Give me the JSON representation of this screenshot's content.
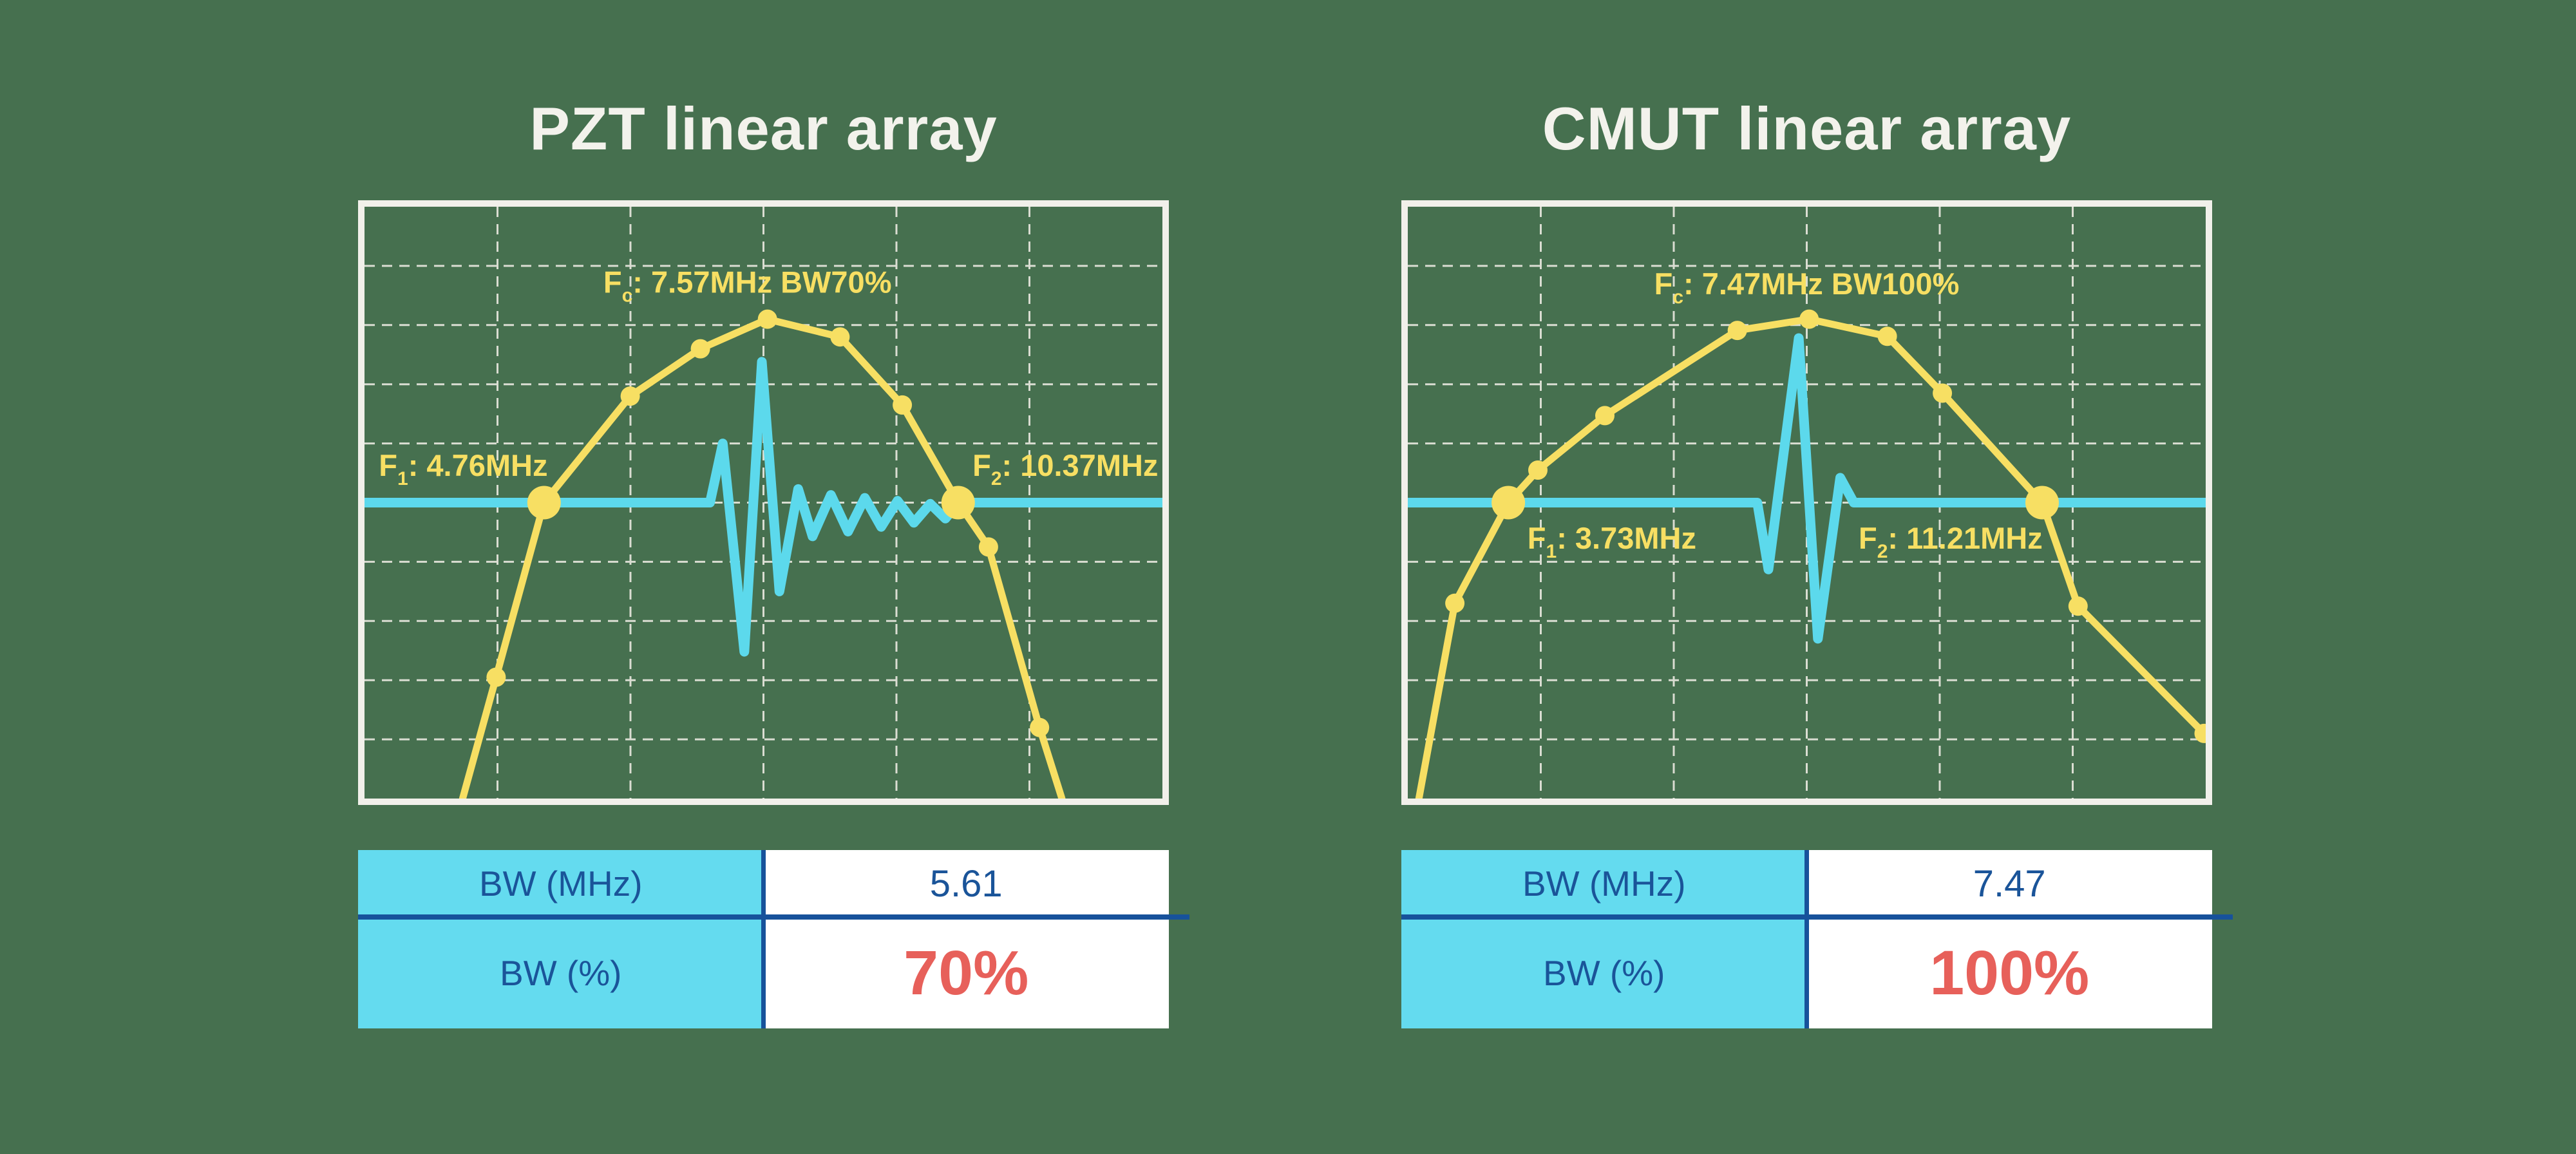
{
  "colors": {
    "background": "#46704F",
    "yellow": "#F7DF63",
    "cyan": "#5CD9EC",
    "table_header_bg": "#64DBEF",
    "table_text_blue": "#1A5499",
    "value_red": "#E7605A",
    "divider_blue": "#17529B",
    "chart_border": "#F1F0EA",
    "grid": "#F4F1E9",
    "title_text": "#F3F2EC"
  },
  "panels": [
    {
      "title": "PZT linear array",
      "table": {
        "rows": [
          {
            "label": "BW (MHz)",
            "value": "5.61"
          },
          {
            "label": "BW (%)",
            "value": "70%"
          }
        ]
      }
    },
    {
      "title": "CMUT linear array",
      "table": {
        "rows": [
          {
            "label": "BW (MHz)",
            "value": "7.47"
          },
          {
            "label": "BW (%)",
            "value": "100%"
          }
        ]
      }
    }
  ],
  "chart_data": [
    {
      "type": "line",
      "title": "PZT linear array",
      "xlabel": "frequency (MHz, unlabeled axis)",
      "ylabel": "relative amplitude (unlabeled axis)",
      "x_range_mhz_est": [
        2.3,
        13.1
      ],
      "grid": {
        "cols": 6,
        "rows": 10,
        "style": "dashed"
      },
      "legend": "none",
      "f1_mhz": 4.76,
      "fc_mhz": 7.57,
      "f2_mhz": 10.37,
      "bw_mhz": 5.61,
      "bw_pct": 70,
      "annotations": [
        {
          "prefix": "F",
          "sub": "c",
          "rest": ": 7.57MHz BW70%",
          "x": 0.48,
          "y": 0.145,
          "anchor": "middle"
        },
        {
          "prefix": "F",
          "sub": "1",
          "rest": ": 4.76MHz",
          "x": 0.018,
          "y": 0.455,
          "anchor": "start"
        },
        {
          "prefix": "F",
          "sub": "2",
          "rest": ": 10.37MHz",
          "x": 0.762,
          "y": 0.455,
          "anchor": "start"
        }
      ],
      "spectrum": {
        "points_norm": [
          [
            0.123,
            1.0
          ],
          [
            0.165,
            0.795
          ],
          [
            0.225,
            0.5
          ],
          [
            0.333,
            0.32
          ],
          [
            0.421,
            0.24
          ],
          [
            0.505,
            0.19
          ],
          [
            0.596,
            0.22
          ],
          [
            0.674,
            0.335
          ],
          [
            0.744,
            0.5
          ],
          [
            0.782,
            0.575
          ],
          [
            0.846,
            0.88
          ],
          [
            0.874,
            1.0
          ]
        ],
        "dots": [
          1,
          2,
          3,
          4,
          5,
          6,
          7,
          8,
          9,
          10
        ],
        "big_dots": [
          2,
          8
        ],
        "dots_mhz_est": [
          4.11,
          4.76,
          5.93,
          6.88,
          7.79,
          8.77,
          9.62,
          10.37,
          10.78,
          11.47
        ],
        "dots_db_est": [
          -11.7,
          -6.0,
          -2.5,
          -1.0,
          0.0,
          -0.6,
          -2.8,
          -6.0,
          -7.5,
          -13.4
        ]
      },
      "pulse": {
        "description": "pulse-echo waveform, long ring-down (narrow band)",
        "baseline_y_norm": 0.5,
        "points_norm": [
          [
            0.0,
            0.5
          ],
          [
            0.433,
            0.5
          ],
          [
            0.449,
            0.4
          ],
          [
            0.476,
            0.752
          ],
          [
            0.498,
            0.262
          ],
          [
            0.52,
            0.65
          ],
          [
            0.5435,
            0.477
          ],
          [
            0.5615,
            0.557
          ],
          [
            0.5845,
            0.487
          ],
          [
            0.606,
            0.549
          ],
          [
            0.627,
            0.492
          ],
          [
            0.6475,
            0.541
          ],
          [
            0.668,
            0.497
          ],
          [
            0.6885,
            0.534
          ],
          [
            0.709,
            0.502
          ],
          [
            0.728,
            0.527
          ],
          [
            0.744,
            0.5
          ],
          [
            1.0,
            0.5
          ]
        ]
      }
    },
    {
      "type": "line",
      "title": "CMUT linear array",
      "xlabel": "frequency (MHz, unlabeled axis)",
      "ylabel": "relative amplitude (unlabeled axis)",
      "x_range_mhz_est": [
        2.3,
        13.5
      ],
      "grid": {
        "cols": 6,
        "rows": 10,
        "style": "dashed"
      },
      "legend": "none",
      "f1_mhz": 3.73,
      "fc_mhz": 7.47,
      "f2_mhz": 11.21,
      "bw_mhz": 7.47,
      "bw_pct": 100,
      "annotations": [
        {
          "prefix": "F",
          "sub": "c",
          "rest": ": 7.47MHz BW100%",
          "x": 0.5,
          "y": 0.148,
          "anchor": "middle"
        },
        {
          "prefix": "F",
          "sub": "1",
          "rest": ": 3.73MHz",
          "x": 0.15,
          "y": 0.578,
          "anchor": "start"
        },
        {
          "prefix": "F",
          "sub": "2",
          "rest": ": 11.21MHz",
          "x": 0.565,
          "y": 0.578,
          "anchor": "start"
        }
      ],
      "spectrum": {
        "points_norm": [
          [
            0.014,
            1.0
          ],
          [
            0.059,
            0.67
          ],
          [
            0.126,
            0.5
          ],
          [
            0.163,
            0.445
          ],
          [
            0.247,
            0.353
          ],
          [
            0.413,
            0.209
          ],
          [
            0.503,
            0.19
          ],
          [
            0.601,
            0.219
          ],
          [
            0.67,
            0.315
          ],
          [
            0.795,
            0.5
          ],
          [
            0.84,
            0.675
          ],
          [
            0.998,
            0.89
          ]
        ],
        "dots": [
          1,
          2,
          3,
          4,
          5,
          6,
          7,
          8,
          9,
          10,
          11
        ],
        "big_dots": [
          2,
          9
        ],
        "dots_mhz_est": [
          2.98,
          3.73,
          4.14,
          5.08,
          6.94,
          7.94,
          9.04,
          9.81,
          11.21,
          11.71,
          13.48
        ],
        "dots_db_est": [
          -9.3,
          -6.0,
          -4.9,
          -3.2,
          -0.4,
          0.0,
          -0.6,
          -2.4,
          -6.0,
          -9.4,
          -13.5
        ]
      },
      "pulse": {
        "description": "pulse-echo waveform, short compact pulse (wide band)",
        "baseline_y_norm": 0.5,
        "points_norm": [
          [
            0.0,
            0.5
          ],
          [
            0.438,
            0.5
          ],
          [
            0.452,
            0.613
          ],
          [
            0.49,
            0.222
          ],
          [
            0.514,
            0.73
          ],
          [
            0.542,
            0.458
          ],
          [
            0.559,
            0.5
          ],
          [
            1.0,
            0.5
          ]
        ]
      }
    }
  ]
}
